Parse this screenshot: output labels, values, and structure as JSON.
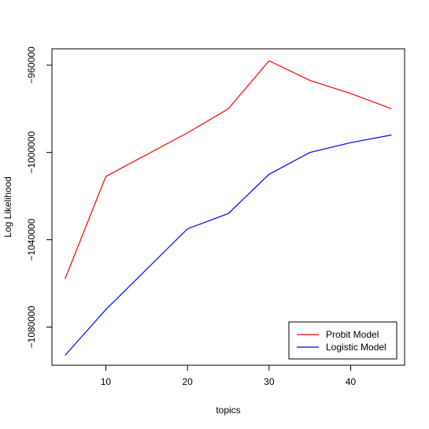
{
  "chart_data": {
    "type": "line",
    "xlabel": "topics",
    "ylabel": "Log Likelihood",
    "xlim": [
      3.4,
      46.6
    ],
    "ylim": [
      -1097500,
      -952500
    ],
    "xticks": [
      10,
      20,
      30,
      40
    ],
    "yticks": [
      -1080000,
      -1040000,
      -1000000,
      -960000
    ],
    "ytick_labels": [
      "−1080000",
      "−1040000",
      "−1000000",
      "−960000"
    ],
    "x": [
      5,
      10,
      20,
      25,
      30,
      35,
      40,
      45
    ],
    "series": [
      {
        "name": "Probit Model",
        "color": "#ff0000",
        "values": [
          -1058000,
          -1011000,
          -991000,
          -980000,
          -958000,
          -967000,
          -973000,
          -980000
        ]
      },
      {
        "name": "Logistic Model",
        "color": "#0000ff",
        "values": [
          -1093000,
          -1072000,
          -1035000,
          -1028000,
          -1010000,
          -1000000,
          -995500,
          -992000
        ]
      }
    ],
    "legend_position": "bottom-right",
    "grid": false
  }
}
